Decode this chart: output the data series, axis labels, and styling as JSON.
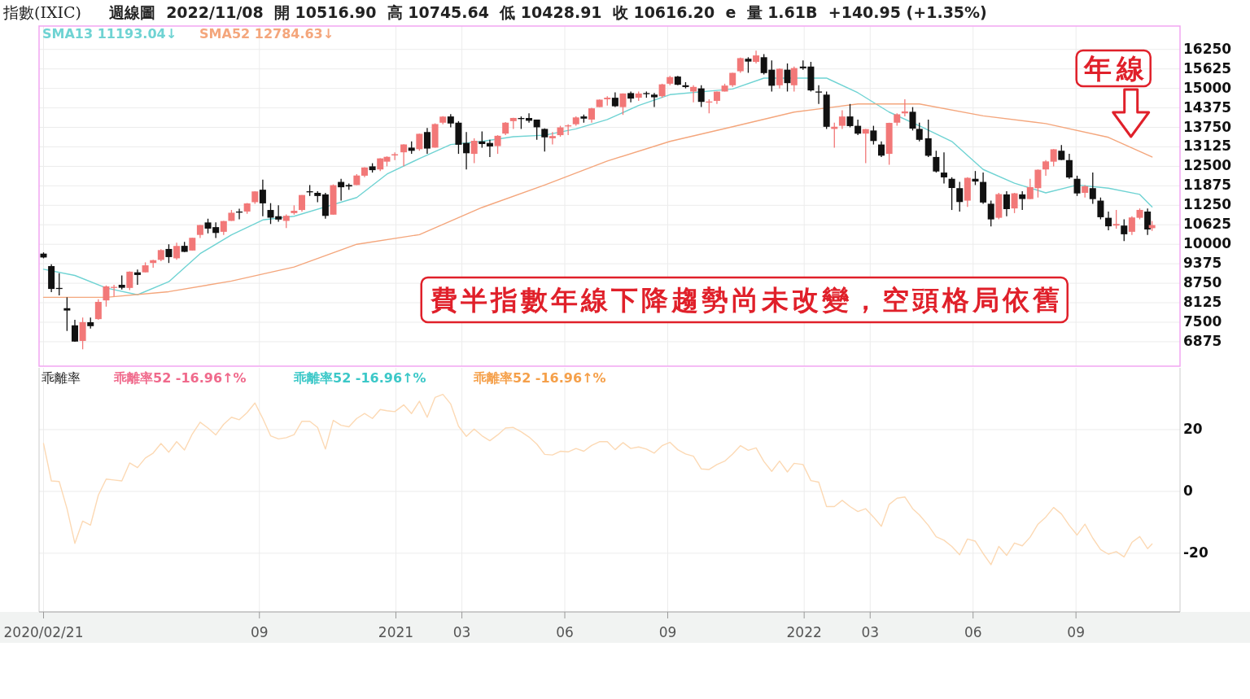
{
  "chart_data": [
    {
      "type": "candlestick",
      "title": "指數(IXIC)",
      "subtitle": "週線圖  2022/11/08  開 10516.90  高 10745.64  低 10428.91  收 10616.20  e  量 1.61B  +140.95 (+1.35%)",
      "x": [
        "2020-02-21",
        "2020-02-28",
        "2020-03-06",
        "2020-03-13",
        "2020-03-20",
        "2020-03-27",
        "2020-04-03",
        "2020-04-10",
        "2020-04-17",
        "2020-04-24",
        "2020-05-01",
        "2020-05-08",
        "2020-05-15",
        "2020-05-22",
        "2020-05-29",
        "2020-06-05",
        "2020-06-12",
        "2020-06-19",
        "2020-06-26",
        "2020-07-03",
        "2020-07-10",
        "2020-07-17",
        "2020-07-24",
        "2020-07-31",
        "2020-08-07",
        "2020-08-14",
        "2020-08-21",
        "2020-08-28",
        "2020-09-04",
        "2020-09-11",
        "2020-09-18",
        "2020-09-25",
        "2020-10-02",
        "2020-10-09",
        "2020-10-16",
        "2020-10-23",
        "2020-10-30",
        "2020-11-06",
        "2020-11-13",
        "2020-11-20",
        "2020-11-27",
        "2020-12-04",
        "2020-12-11",
        "2020-12-18",
        "2020-12-24",
        "2020-12-31",
        "2021-01-08",
        "2021-01-15",
        "2021-01-22",
        "2021-01-29",
        "2021-02-05",
        "2021-02-12",
        "2021-02-19",
        "2021-02-26",
        "2021-03-05",
        "2021-03-12",
        "2021-03-19",
        "2021-03-26",
        "2021-04-02",
        "2021-04-09",
        "2021-04-16",
        "2021-04-23",
        "2021-04-30",
        "2021-05-07",
        "2021-05-14",
        "2021-05-21",
        "2021-05-28",
        "2021-06-04",
        "2021-06-11",
        "2021-06-18",
        "2021-06-25",
        "2021-07-02",
        "2021-07-09",
        "2021-07-16",
        "2021-07-23",
        "2021-07-30",
        "2021-08-06",
        "2021-08-13",
        "2021-08-20",
        "2021-08-27",
        "2021-09-03",
        "2021-09-10",
        "2021-09-17",
        "2021-09-24",
        "2021-10-01",
        "2021-10-08",
        "2021-10-15",
        "2021-10-22",
        "2021-10-29",
        "2021-11-05",
        "2021-11-12",
        "2021-11-19",
        "2021-11-26",
        "2021-12-03",
        "2021-12-10",
        "2021-12-17",
        "2021-12-23",
        "2021-12-31",
        "2022-01-07",
        "2022-01-14",
        "2022-01-21",
        "2022-01-28",
        "2022-02-04",
        "2022-02-11",
        "2022-02-18",
        "2022-02-25",
        "2022-03-04",
        "2022-03-11",
        "2022-03-18",
        "2022-03-25",
        "2022-04-01",
        "2022-04-08",
        "2022-04-14",
        "2022-04-22",
        "2022-04-29",
        "2022-05-06",
        "2022-05-13",
        "2022-05-20",
        "2022-05-27",
        "2022-06-03",
        "2022-06-10",
        "2022-06-17",
        "2022-06-24",
        "2022-07-01",
        "2022-07-08",
        "2022-07-15",
        "2022-07-22",
        "2022-07-29",
        "2022-08-05",
        "2022-08-12",
        "2022-08-19",
        "2022-08-26",
        "2022-09-02",
        "2022-09-09",
        "2022-09-16",
        "2022-09-23",
        "2022-09-30",
        "2022-10-07",
        "2022-10-14",
        "2022-10-21",
        "2022-10-28",
        "2022-11-04",
        "2022-11-08"
      ],
      "ohlc": [
        [
          9700,
          9740,
          9550,
          9577
        ],
        [
          9300,
          9360,
          8465,
          8567
        ],
        [
          8600,
          9070,
          8360,
          8576
        ],
        [
          7950,
          8300,
          7220,
          7875
        ],
        [
          7400,
          7580,
          6870,
          6880
        ],
        [
          6900,
          7650,
          6631,
          7502
        ],
        [
          7500,
          7650,
          7300,
          7374
        ],
        [
          7600,
          8240,
          7580,
          8153
        ],
        [
          8200,
          8680,
          8000,
          8650
        ],
        [
          8600,
          8700,
          8330,
          8634
        ],
        [
          8700,
          9000,
          8550,
          8605
        ],
        [
          8600,
          9130,
          8530,
          9121
        ],
        [
          9100,
          9190,
          8700,
          9015
        ],
        [
          9100,
          9420,
          9100,
          9325
        ],
        [
          9400,
          9500,
          9250,
          9490
        ],
        [
          9500,
          9845,
          9460,
          9814
        ],
        [
          9850,
          10000,
          9400,
          9589
        ],
        [
          9550,
          10050,
          9500,
          9946
        ],
        [
          9950,
          10080,
          9750,
          9757
        ],
        [
          9800,
          10210,
          9800,
          10208
        ],
        [
          10300,
          10620,
          10200,
          10617
        ],
        [
          10700,
          10820,
          10350,
          10503
        ],
        [
          10550,
          10700,
          10200,
          10363
        ],
        [
          10400,
          10750,
          10300,
          10745
        ],
        [
          10750,
          11100,
          10750,
          11011
        ],
        [
          11050,
          11140,
          10800,
          11019
        ],
        [
          11050,
          11320,
          10980,
          11311
        ],
        [
          11350,
          11700,
          11300,
          11695
        ],
        [
          11750,
          12074,
          10900,
          11313
        ],
        [
          11100,
          11320,
          10650,
          10854
        ],
        [
          10900,
          11250,
          10720,
          10793
        ],
        [
          10750,
          10960,
          10520,
          10914
        ],
        [
          11000,
          11250,
          10950,
          11075
        ],
        [
          11100,
          11580,
          11050,
          11580
        ],
        [
          11700,
          11900,
          11550,
          11672
        ],
        [
          11650,
          11700,
          11350,
          11548
        ],
        [
          11600,
          11650,
          10822,
          10911
        ],
        [
          10950,
          11920,
          10950,
          11895
        ],
        [
          12000,
          12100,
          11400,
          11829
        ],
        [
          11900,
          11950,
          11750,
          11855
        ],
        [
          11900,
          12250,
          11900,
          12206
        ],
        [
          12200,
          12470,
          12150,
          12464
        ],
        [
          12500,
          12600,
          12300,
          12378
        ],
        [
          12400,
          12760,
          12350,
          12755
        ],
        [
          12650,
          12820,
          12500,
          12805
        ],
        [
          12850,
          12950,
          12700,
          12888
        ],
        [
          12950,
          13210,
          12500,
          13202
        ],
        [
          13100,
          13300,
          12900,
          12998
        ],
        [
          13050,
          13550,
          13000,
          13543
        ],
        [
          13600,
          13730,
          12900,
          13070
        ],
        [
          13100,
          13880,
          13100,
          13856
        ],
        [
          13900,
          14110,
          13850,
          14095
        ],
        [
          14100,
          14175,
          13750,
          13874
        ],
        [
          13900,
          13950,
          12900,
          13192
        ],
        [
          13250,
          13600,
          12400,
          12920
        ],
        [
          12900,
          13400,
          12600,
          13319
        ],
        [
          13300,
          13620,
          13100,
          13215
        ],
        [
          13250,
          13350,
          12800,
          13138
        ],
        [
          13150,
          13500,
          12900,
          13480
        ],
        [
          13550,
          13920,
          13500,
          13900
        ],
        [
          13950,
          14060,
          13700,
          14052
        ],
        [
          14050,
          14100,
          13700,
          14016
        ],
        [
          14050,
          14200,
          13900,
          13962
        ],
        [
          14000,
          14000,
          13350,
          13752
        ],
        [
          13700,
          13720,
          12975,
          13430
        ],
        [
          13400,
          13600,
          13200,
          13471
        ],
        [
          13500,
          13800,
          13450,
          13749
        ],
        [
          13800,
          13850,
          13500,
          13814
        ],
        [
          13850,
          14100,
          13800,
          14069
        ],
        [
          14100,
          14160,
          13900,
          14030
        ],
        [
          14000,
          14380,
          13900,
          14360
        ],
        [
          14400,
          14645,
          14400,
          14639
        ],
        [
          14650,
          14750,
          14450,
          14701
        ],
        [
          14700,
          14870,
          14400,
          14427
        ],
        [
          14400,
          14840,
          14150,
          14837
        ],
        [
          14850,
          14900,
          14550,
          14673
        ],
        [
          14700,
          14900,
          14600,
          14835
        ],
        [
          14850,
          14900,
          14700,
          14823
        ],
        [
          14800,
          14850,
          14400,
          14715
        ],
        [
          14750,
          15150,
          14700,
          15130
        ],
        [
          15150,
          15400,
          15100,
          15363
        ],
        [
          15380,
          15400,
          15100,
          15116
        ],
        [
          15100,
          15200,
          15000,
          15044
        ],
        [
          14900,
          15100,
          14550,
          15048
        ],
        [
          15000,
          15100,
          14400,
          14567
        ],
        [
          14550,
          14650,
          14200,
          14580
        ],
        [
          14600,
          14900,
          14500,
          14897
        ],
        [
          14900,
          15150,
          14900,
          15090
        ],
        [
          15100,
          15500,
          15050,
          15498
        ],
        [
          15550,
          15990,
          15500,
          15971
        ],
        [
          15950,
          16000,
          15500,
          15860
        ],
        [
          15850,
          16212,
          15800,
          16057
        ],
        [
          16000,
          16100,
          15450,
          15491
        ],
        [
          15600,
          15900,
          14900,
          15085
        ],
        [
          15100,
          15640,
          15000,
          15630
        ],
        [
          15600,
          15800,
          14900,
          15169
        ],
        [
          15100,
          15700,
          14900,
          15653
        ],
        [
          15700,
          15900,
          15600,
          15645
        ],
        [
          15700,
          15850,
          14900,
          14935
        ],
        [
          14900,
          15100,
          14500,
          14894
        ],
        [
          14800,
          14900,
          13700,
          13768
        ],
        [
          13700,
          13900,
          13100,
          13770
        ],
        [
          13800,
          14300,
          13700,
          14098
        ],
        [
          14100,
          14500,
          13750,
          13791
        ],
        [
          13800,
          14000,
          13500,
          13548
        ],
        [
          13550,
          13700,
          12600,
          13694
        ],
        [
          13650,
          13800,
          13200,
          13313
        ],
        [
          13200,
          13300,
          12800,
          12843
        ],
        [
          12900,
          13900,
          12550,
          13893
        ],
        [
          13900,
          14200,
          13800,
          14169
        ],
        [
          14200,
          14650,
          14100,
          14261
        ],
        [
          14250,
          14400,
          13650,
          13711
        ],
        [
          13700,
          13900,
          13300,
          13351
        ],
        [
          13400,
          14000,
          12800,
          12839
        ],
        [
          12800,
          13000,
          12300,
          12335
        ],
        [
          12300,
          12950,
          11950,
          12145
        ],
        [
          12100,
          12150,
          11100,
          11805
        ],
        [
          11800,
          12000,
          11050,
          11355
        ],
        [
          11400,
          12150,
          11200,
          12131
        ],
        [
          12100,
          12350,
          11900,
          12013
        ],
        [
          12000,
          12300,
          11300,
          11340
        ],
        [
          11300,
          11400,
          10570,
          10798
        ],
        [
          10850,
          11650,
          10800,
          11608
        ],
        [
          11600,
          11700,
          10900,
          11128
        ],
        [
          11150,
          11650,
          11000,
          11635
        ],
        [
          11600,
          11700,
          11100,
          11452
        ],
        [
          11450,
          12100,
          11450,
          11834
        ],
        [
          11800,
          12400,
          11500,
          12391
        ],
        [
          12400,
          12700,
          12200,
          12658
        ],
        [
          12650,
          13050,
          12500,
          13047
        ],
        [
          13000,
          13180,
          12700,
          12705
        ],
        [
          12700,
          12900,
          12100,
          12142
        ],
        [
          12100,
          12200,
          11550,
          11631
        ],
        [
          11650,
          11900,
          11500,
          11862
        ],
        [
          11800,
          12300,
          11300,
          11449
        ],
        [
          11400,
          11500,
          10800,
          10868
        ],
        [
          10850,
          11050,
          10450,
          10576
        ],
        [
          10600,
          11100,
          10500,
          10652
        ],
        [
          10600,
          10800,
          10100,
          10321
        ],
        [
          10400,
          10900,
          10300,
          10860
        ],
        [
          10850,
          11150,
          10800,
          11102
        ],
        [
          11050,
          11150,
          10300,
          10475
        ],
        [
          10516.9,
          10745.64,
          10428.91,
          10616.2
        ]
      ],
      "series": [
        {
          "name": "SMA13 11193.04↓",
          "type": "line",
          "color": "#6fd3d3",
          "x": [
            "2020-02-21",
            "2020-03-20",
            "2020-04-17",
            "2020-05-15",
            "2020-06-12",
            "2020-07-10",
            "2020-08-07",
            "2020-09-04",
            "2020-10-02",
            "2020-11-27",
            "2020-12-24",
            "2021-01-22",
            "2021-02-19",
            "2021-03-19",
            "2021-04-16",
            "2021-05-14",
            "2021-06-11",
            "2021-07-09",
            "2021-08-06",
            "2021-09-03",
            "2021-10-29",
            "2021-11-26",
            "2022-01-21",
            "2022-02-18",
            "2022-03-18",
            "2022-04-14",
            "2022-05-13",
            "2022-06-10",
            "2022-07-08",
            "2022-08-05",
            "2022-09-02",
            "2022-09-30",
            "2022-10-28",
            "2022-11-08"
          ],
          "values": [
            9200,
            9000,
            8600,
            8380,
            8800,
            9700,
            10300,
            10780,
            10900,
            11500,
            12250,
            12750,
            13200,
            13300,
            13450,
            13500,
            13700,
            14000,
            14450,
            14800,
            14980,
            15330,
            15330,
            14860,
            14240,
            13800,
            13300,
            12400,
            11960,
            11650,
            11900,
            11800,
            11600,
            11200
          ]
        },
        {
          "name": "SMA52 12784.63↓",
          "type": "line",
          "color": "#f4a67c",
          "x": [
            "2020-02-21",
            "2020-04-17",
            "2020-06-12",
            "2020-08-07",
            "2020-10-02",
            "2020-11-27",
            "2021-01-22",
            "2021-03-19",
            "2021-05-14",
            "2021-07-09",
            "2021-09-03",
            "2021-10-29",
            "2021-12-23",
            "2022-02-18",
            "2022-04-14",
            "2022-06-10",
            "2022-08-05",
            "2022-09-30",
            "2022-11-08"
          ],
          "values": [
            8300,
            8300,
            8480,
            8820,
            9270,
            10000,
            10310,
            11180,
            11900,
            12670,
            13300,
            13770,
            14240,
            14500,
            14500,
            14120,
            13870,
            13430,
            12800
          ]
        }
      ],
      "xlim": [
        "2020-02-17",
        "2022-12-03"
      ],
      "xticks": [
        {
          "value": "2020-02-21",
          "label": null
        },
        {
          "value": "2020-09-01",
          "label": null
        },
        {
          "value": "2021-01-01",
          "label": null
        },
        {
          "value": "2021-03-01",
          "label": null
        },
        {
          "value": "2021-06-01",
          "label": null
        },
        {
          "value": "2021-09-01",
          "label": null
        },
        {
          "value": "2022-01-01",
          "label": null
        },
        {
          "value": "2022-03-01",
          "label": null
        },
        {
          "value": "2022-06-01",
          "label": null
        },
        {
          "value": "2022-09-01",
          "label": null
        }
      ],
      "ylim": [
        6090,
        17000
      ],
      "yticks": [
        6875,
        7500,
        8125,
        8750,
        9375,
        10000,
        10625,
        11250,
        11875,
        12500,
        13125,
        13750,
        14375,
        15000,
        15625,
        16250
      ],
      "tick_labels": "y",
      "grid": true,
      "legend": "top left",
      "annotations": [
        "年線",
        "費半指數年線下降趨勢尚未改變，空頭格局依舊"
      ]
    },
    {
      "type": "line",
      "title": "乖離率",
      "x": [
        "2020-02-21",
        "2020-02-28",
        "2020-03-06",
        "2020-03-13",
        "2020-03-20",
        "2020-03-27",
        "2020-04-03",
        "2020-04-10",
        "2020-04-17",
        "2020-04-24",
        "2020-05-01",
        "2020-05-08",
        "2020-05-15",
        "2020-05-22",
        "2020-05-29",
        "2020-06-05",
        "2020-06-12",
        "2020-06-19",
        "2020-06-26",
        "2020-07-03",
        "2020-07-10",
        "2020-07-17",
        "2020-07-24",
        "2020-07-31",
        "2020-08-07",
        "2020-08-14",
        "2020-08-21",
        "2020-08-28",
        "2020-09-04",
        "2020-09-11",
        "2020-09-18",
        "2020-09-25",
        "2020-10-02",
        "2020-10-09",
        "2020-10-16",
        "2020-10-23",
        "2020-10-30",
        "2020-11-06",
        "2020-11-13",
        "2020-11-20",
        "2020-11-27",
        "2020-12-04",
        "2020-12-11",
        "2020-12-18",
        "2020-12-24",
        "2020-12-31",
        "2021-01-08",
        "2021-01-15",
        "2021-01-22",
        "2021-01-29",
        "2021-02-05",
        "2021-02-12",
        "2021-02-19",
        "2021-02-26",
        "2021-03-05",
        "2021-03-12",
        "2021-03-19",
        "2021-03-26",
        "2021-04-02",
        "2021-04-09",
        "2021-04-16",
        "2021-04-23",
        "2021-04-30",
        "2021-05-07",
        "2021-05-14",
        "2021-05-21",
        "2021-05-28",
        "2021-06-04",
        "2021-06-11",
        "2021-06-18",
        "2021-06-25",
        "2021-07-02",
        "2021-07-09",
        "2021-07-16",
        "2021-07-23",
        "2021-07-30",
        "2021-08-06",
        "2021-08-13",
        "2021-08-20",
        "2021-08-27",
        "2021-09-03",
        "2021-09-10",
        "2021-09-17",
        "2021-09-24",
        "2021-10-01",
        "2021-10-08",
        "2021-10-15",
        "2021-10-22",
        "2021-10-29",
        "2021-11-05",
        "2021-11-12",
        "2021-11-19",
        "2021-11-26",
        "2021-12-03",
        "2021-12-10",
        "2021-12-17",
        "2021-12-23",
        "2021-12-31",
        "2022-01-07",
        "2022-01-14",
        "2022-01-21",
        "2022-01-28",
        "2022-02-04",
        "2022-02-11",
        "2022-02-18",
        "2022-02-25",
        "2022-03-04",
        "2022-03-11",
        "2022-03-18",
        "2022-03-25",
        "2022-04-01",
        "2022-04-08",
        "2022-04-14",
        "2022-04-22",
        "2022-04-29",
        "2022-05-06",
        "2022-05-13",
        "2022-05-20",
        "2022-05-27",
        "2022-06-03",
        "2022-06-10",
        "2022-06-17",
        "2022-06-24",
        "2022-07-01",
        "2022-07-08",
        "2022-07-15",
        "2022-07-22",
        "2022-07-29",
        "2022-08-05",
        "2022-08-12",
        "2022-08-19",
        "2022-08-26",
        "2022-09-02",
        "2022-09-09",
        "2022-09-16",
        "2022-09-23",
        "2022-09-30",
        "2022-10-07",
        "2022-10-14",
        "2022-10-21",
        "2022-10-28",
        "2022-11-04",
        "2022-11-08"
      ],
      "series": [
        {
          "color": "#fcd9b4",
          "values": [
            15.5,
            3.4,
            3.2,
            -5.6,
            -16.8,
            -9.6,
            -10.9,
            -1.2,
            4,
            3.7,
            3.4,
            9.2,
            7.7,
            10.8,
            12.4,
            15.5,
            12.7,
            16.1,
            13.4,
            18.6,
            22.4,
            20.5,
            18.3,
            21.7,
            24,
            23.2,
            25.5,
            28.6,
            23.6,
            18,
            17,
            17.4,
            18.4,
            22.7,
            22.7,
            20.7,
            13.7,
            23,
            21.4,
            20.9,
            23.6,
            25.2,
            23.6,
            26.5,
            26.1,
            25.8,
            28,
            25.2,
            29.2,
            24,
            30.4,
            31.4,
            28.3,
            21.1,
            17.8,
            20.2,
            18,
            16.4,
            18.3,
            20.5,
            20.7,
            19.3,
            17.6,
            15.3,
            12,
            11.8,
            13,
            12.8,
            13.9,
            13,
            14.9,
            16.1,
            16.1,
            13.5,
            15.8,
            13.9,
            14.4,
            13.7,
            12.4,
            14.8,
            15.9,
            13.5,
            12.1,
            11.4,
            7.3,
            7.1,
            8.7,
            9.8,
            12.1,
            14.8,
            13.3,
            14.1,
            9.7,
            6.5,
            9.8,
            6.3,
            9.1,
            8.7,
            3.5,
            3,
            -4.9,
            -4.9,
            -2.9,
            -4.9,
            -6.5,
            -5.6,
            -8.3,
            -11.3,
            -4.2,
            -2.2,
            -1.8,
            -5.6,
            -7.6,
            -11,
            -14.7,
            -15.8,
            -17.8,
            -20.5,
            -15.4,
            -16.1,
            -20.1,
            -23.7,
            -17.8,
            -20.7,
            -16.7,
            -17.6,
            -14.8,
            -10.6,
            -8.3,
            -5.2,
            -7.3,
            -11,
            -14.1,
            -10.6,
            -15.1,
            -18.8,
            -20.3,
            -19.5,
            -21.2,
            -16.5,
            -14.6,
            -18.5,
            -17
          ]
        }
      ],
      "xlim": [
        "2020-02-17",
        "2022-12-03"
      ],
      "xticks": [
        {
          "value": "2020-02-21",
          "label": "2020/02/21"
        },
        {
          "value": "2020-09-01",
          "label": "09"
        },
        {
          "value": "2021-01-01",
          "label": "2021"
        },
        {
          "value": "2021-03-01",
          "label": "03"
        },
        {
          "value": "2021-06-01",
          "label": "06"
        },
        {
          "value": "2021-09-01",
          "label": "09"
        },
        {
          "value": "2022-01-01",
          "label": "2022"
        },
        {
          "value": "2022-03-01",
          "label": "03"
        },
        {
          "value": "2022-06-01",
          "label": "06"
        },
        {
          "value": "2022-09-01",
          "label": "09"
        }
      ],
      "ylim": [
        -39,
        40
      ],
      "yticks": [
        -20,
        0,
        20
      ],
      "grid": true,
      "annotations": [
        "乖離率52 -16.96↑%",
        "乖離率52 -16.96↑%",
        "乖離率52 -16.96↑%"
      ]
    }
  ]
}
